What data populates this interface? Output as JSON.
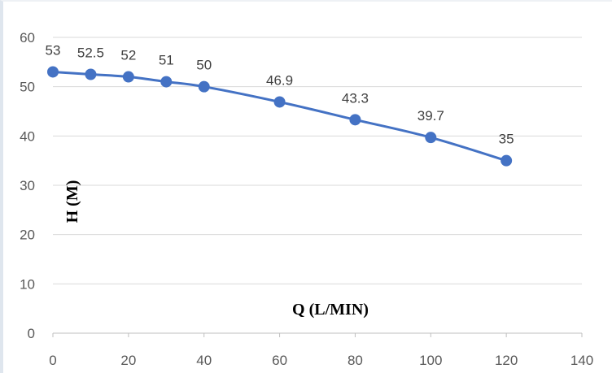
{
  "chart_data": {
    "type": "scatter",
    "mode": "lines+markers",
    "x": [
      0,
      10,
      20,
      30,
      40,
      60,
      80,
      100,
      120
    ],
    "series": [
      {
        "values": [
          53,
          52.5,
          52,
          51,
          50,
          46.9,
          43.3,
          39.7,
          35
        ],
        "labels": [
          "53",
          "52.5",
          "52",
          "51",
          "50",
          "46.9",
          "43.3",
          "39.7",
          "35"
        ]
      }
    ],
    "xlabel": "Q (L/MIN)",
    "ylabel": "H (M)",
    "xlim": [
      0,
      140
    ],
    "ylim": [
      0,
      60
    ],
    "x_ticks": [
      "0",
      "20",
      "40",
      "60",
      "80",
      "100",
      "120",
      "140"
    ],
    "y_ticks": [
      "0",
      "10",
      "20",
      "30",
      "40",
      "50",
      "60"
    ],
    "grid": "horizontal",
    "colors": {
      "series": "#4472c4",
      "grid": "#d9d9d9",
      "axis": "#bfbfbf"
    }
  }
}
